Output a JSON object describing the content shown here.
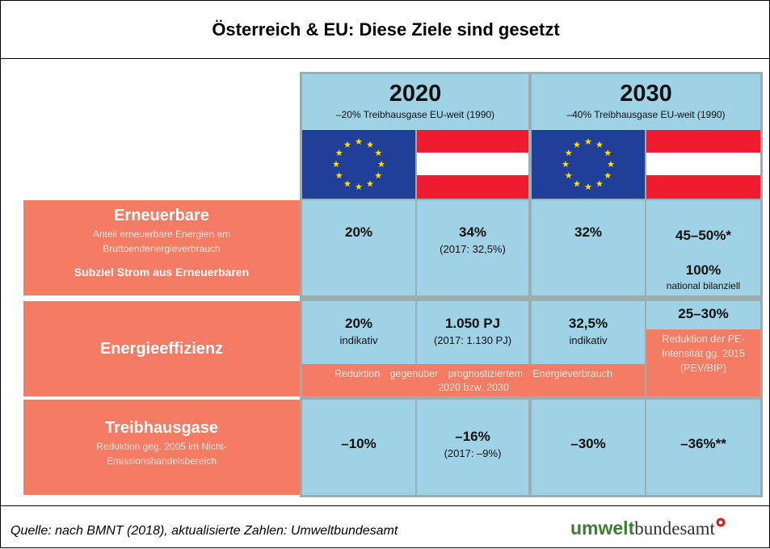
{
  "title": "Österreich & EU: Diese Ziele sind gesetzt",
  "columns": [
    {
      "year": "2020",
      "subtitle": "–20% Treibhausgase EU-weit (1990)"
    },
    {
      "year": "2030",
      "subtitle": "–40% Treibhausgase EU-weit (1990)"
    }
  ],
  "rows": [
    {
      "label": "Erneuerbare",
      "description": "Anteil erneuerbare Energien am Bruttoendenergieverbrauch",
      "note": "Subziel Strom aus Erneuerbaren",
      "cells": [
        {
          "value": "20%"
        },
        {
          "value": "34%",
          "detail": "(2017: 32,5%)"
        },
        {
          "value": "32%"
        },
        {
          "value": "45–50%*",
          "sub_value": "100%",
          "sub_detail": "national bilanziell"
        }
      ]
    },
    {
      "label": "Energieeffizienz",
      "cells": [
        {
          "value": "20%",
          "detail": "indikativ"
        },
        {
          "value": "1.050 PJ",
          "detail": "(2017: 1.130 PJ)"
        },
        {
          "value": "32,5%",
          "detail": "indikativ"
        },
        {
          "value": "25–30%",
          "detail": "Reduktion der PE-Intensität gg. 2015 (PEV/BIP)"
        }
      ],
      "band": "Reduktion gegenüber prognostiziertem Energieverbrauch 2020 bzw. 2030"
    },
    {
      "label": "Treibhausgase",
      "description": "Reduktion geg. 2005 im Nicht-Emissionshandelsbereich",
      "cells": [
        {
          "value": "–10%"
        },
        {
          "value": "–16%",
          "detail": "(2017: –9%)"
        },
        {
          "value": "–30%"
        },
        {
          "value": "–36%**"
        }
      ]
    }
  ],
  "footer": {
    "source": "Quelle: nach BMNT (2018), aktualisierte Zahlen: Umweltbundesamt",
    "logo_bold": "umwelt",
    "logo_rest": "bundesamt"
  }
}
